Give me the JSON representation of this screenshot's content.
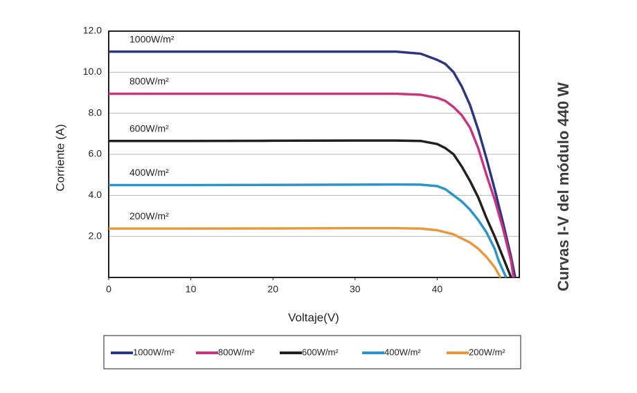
{
  "chart_data": {
    "type": "line",
    "title": "Curvas I-V del módulo 440 W",
    "xlabel": "Voltaje(V)",
    "ylabel": "Corriente (A)",
    "xlim": [
      0,
      50
    ],
    "ylim": [
      0,
      12
    ],
    "xticks": [
      0,
      10,
      20,
      30,
      40
    ],
    "yticks": [
      {
        "value": 2,
        "label": "2.0"
      },
      {
        "value": 4,
        "label": "4.0"
      },
      {
        "value": 6,
        "label": "6.0"
      },
      {
        "value": 8,
        "label": "8.0"
      },
      {
        "value": 10,
        "label": "10.0"
      },
      {
        "value": 12,
        "label": "12.0"
      }
    ],
    "grid": true,
    "legend": "bottom",
    "series": [
      {
        "name": "1000W/m²",
        "color": "#2e3580",
        "x": [
          0,
          10,
          20,
          30,
          35,
          38,
          40,
          41,
          42,
          43,
          44,
          45,
          46,
          47,
          48,
          49,
          49.5
        ],
        "values": [
          11.0,
          11.0,
          11.0,
          11.0,
          11.0,
          10.9,
          10.6,
          10.4,
          10.0,
          9.3,
          8.4,
          7.2,
          5.8,
          4.3,
          2.7,
          1.0,
          0
        ]
      },
      {
        "name": "800W/m²",
        "color": "#c8347f",
        "x": [
          0,
          10,
          20,
          30,
          35,
          38,
          40,
          41,
          42,
          43,
          44,
          45,
          46,
          47,
          48,
          49,
          49.3
        ],
        "values": [
          8.95,
          8.95,
          8.95,
          8.95,
          8.95,
          8.9,
          8.75,
          8.6,
          8.3,
          7.9,
          7.3,
          6.3,
          5.0,
          3.8,
          2.4,
          0.8,
          0
        ]
      },
      {
        "name": "600W/m²",
        "color": "#231f20",
        "x": [
          0,
          10,
          20,
          30,
          35,
          38,
          40,
          41,
          42,
          43,
          44,
          45,
          46,
          47,
          48,
          49
        ],
        "values": [
          6.65,
          6.65,
          6.66,
          6.67,
          6.67,
          6.65,
          6.5,
          6.3,
          6.0,
          5.4,
          4.7,
          3.9,
          2.9,
          2.0,
          1.0,
          0
        ]
      },
      {
        "name": "400W/m²",
        "color": "#2b95c9",
        "x": [
          0,
          10,
          20,
          30,
          35,
          38,
          40,
          41,
          42,
          43,
          44,
          45,
          46,
          47,
          47.5,
          48.4
        ],
        "values": [
          4.5,
          4.5,
          4.51,
          4.52,
          4.53,
          4.52,
          4.45,
          4.3,
          4.0,
          3.7,
          3.3,
          2.8,
          2.2,
          1.4,
          0.8,
          0
        ]
      },
      {
        "name": "200W/m²",
        "color": "#e8983c",
        "x": [
          0,
          10,
          20,
          30,
          35,
          38,
          40,
          41,
          42,
          43,
          44,
          45,
          46,
          47,
          47.7
        ],
        "values": [
          2.38,
          2.38,
          2.39,
          2.4,
          2.4,
          2.38,
          2.3,
          2.2,
          2.1,
          1.9,
          1.7,
          1.4,
          1.0,
          0.5,
          0
        ]
      }
    ]
  }
}
